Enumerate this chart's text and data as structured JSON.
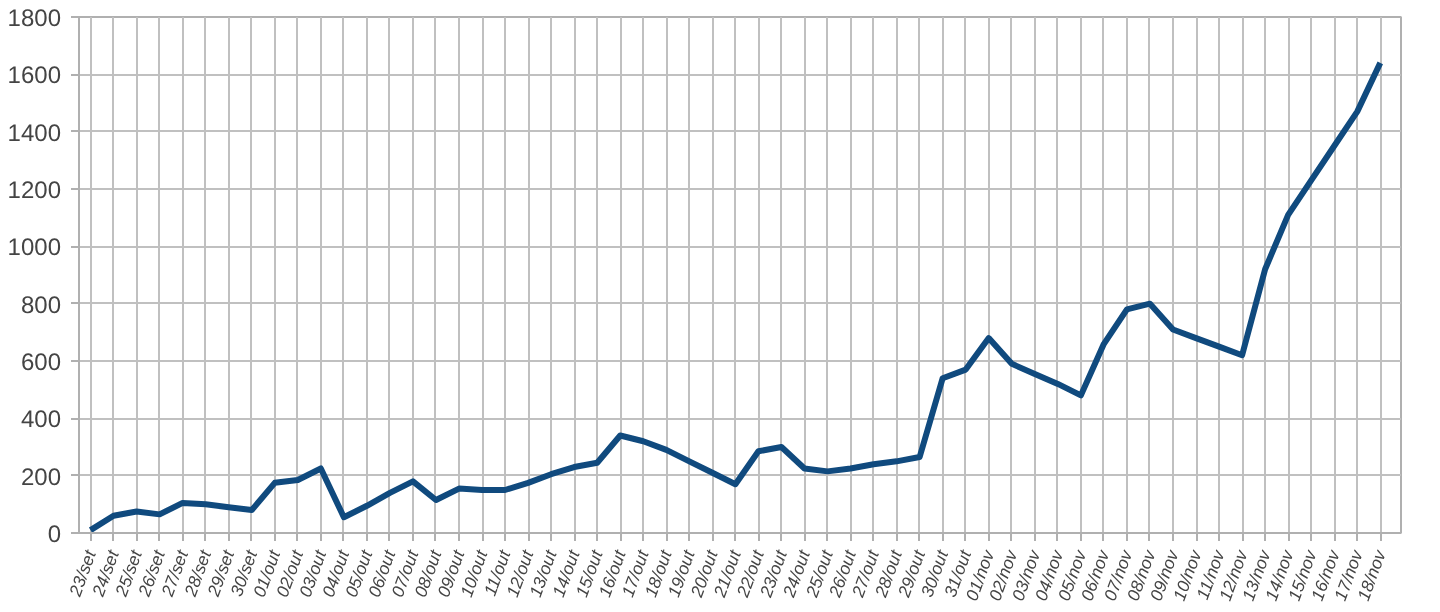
{
  "chart_data": {
    "type": "line",
    "categories": [
      "23/set",
      "24/set",
      "25/set",
      "26/set",
      "27/set",
      "28/set",
      "29/set",
      "30/set",
      "01/out",
      "02/out",
      "03/out",
      "04/out",
      "05/out",
      "06/out",
      "07/out",
      "08/out",
      "09/out",
      "10/out",
      "11/out",
      "12/out",
      "13/out",
      "14/out",
      "15/out",
      "16/out",
      "17/out",
      "18/out",
      "19/out",
      "20/out",
      "21/out",
      "22/out",
      "23/out",
      "24/out",
      "25/out",
      "26/out",
      "27/out",
      "28/out",
      "29/out",
      "30/out",
      "31/out",
      "01/nov",
      "02/nov",
      "03/nov",
      "04/nov",
      "05/nov",
      "06/nov",
      "07/nov",
      "08/nov",
      "09/nov",
      "10/nov",
      "11/nov",
      "12/nov",
      "13/nov",
      "14/nov",
      "15/nov",
      "16/nov",
      "17/nov",
      "18/nov"
    ],
    "series": [
      {
        "color": "#104a7e",
        "values": [
          10,
          60,
          75,
          65,
          105,
          100,
          90,
          80,
          175,
          185,
          225,
          55,
          95,
          140,
          180,
          115,
          155,
          150,
          150,
          175,
          205,
          230,
          245,
          340,
          320,
          290,
          250,
          210,
          170,
          285,
          300,
          225,
          215,
          225,
          240,
          250,
          265,
          540,
          570,
          680,
          590,
          555,
          520,
          480,
          660,
          780,
          800,
          710,
          680,
          650,
          620,
          920,
          1110,
          1230,
          1350,
          1470,
          1640
        ]
      }
    ],
    "ylim": [
      0,
      1800
    ],
    "yticks": [
      0,
      200,
      400,
      600,
      800,
      1000,
      1200,
      1400,
      1600,
      1800
    ],
    "grid": true,
    "marker": "none",
    "line_style": "solid"
  }
}
